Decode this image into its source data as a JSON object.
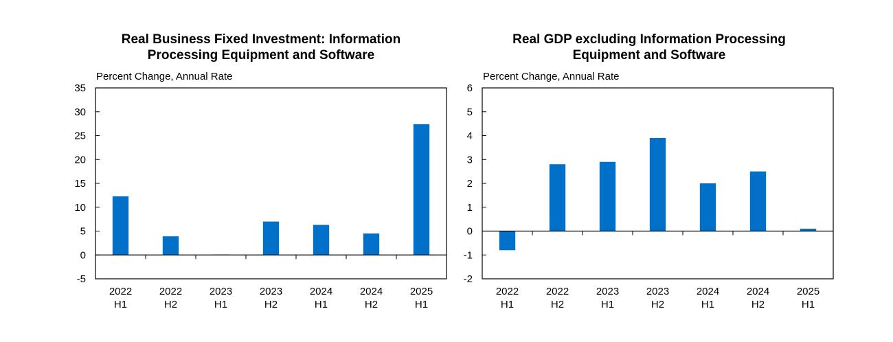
{
  "chart_data": [
    {
      "type": "bar",
      "title_lines": [
        "Real Business Fixed Investment: Information",
        "Processing Equipment and Software"
      ],
      "ylabel": "Percent Change, Annual Rate",
      "xlabel": "",
      "categories": [
        [
          "2022",
          "H1"
        ],
        [
          "2022",
          "H2"
        ],
        [
          "2023",
          "H1"
        ],
        [
          "2023",
          "H2"
        ],
        [
          "2024",
          "H1"
        ],
        [
          "2024",
          "H2"
        ],
        [
          "2025",
          "H1"
        ]
      ],
      "values": [
        12.3,
        3.9,
        0.1,
        7.0,
        6.3,
        4.5,
        27.4
      ],
      "ylim": [
        -5,
        35
      ],
      "yticks": [
        "35",
        "30",
        "25",
        "20",
        "15",
        "10",
        "5",
        "0",
        "-5"
      ],
      "ytick_values": [
        35,
        30,
        25,
        20,
        15,
        10,
        5,
        0,
        -5
      ],
      "grid": false,
      "bar_color": "#0070C8"
    },
    {
      "type": "bar",
      "title_lines": [
        "Real GDP excluding Information Processing",
        "Equipment and Software"
      ],
      "ylabel": "Percent Change, Annual Rate",
      "xlabel": "",
      "categories": [
        [
          "2022",
          "H1"
        ],
        [
          "2022",
          "H2"
        ],
        [
          "2023",
          "H1"
        ],
        [
          "2023",
          "H2"
        ],
        [
          "2024",
          "H1"
        ],
        [
          "2024",
          "H2"
        ],
        [
          "2025",
          "H1"
        ]
      ],
      "values": [
        -0.8,
        2.8,
        2.9,
        3.9,
        2.0,
        2.5,
        0.1
      ],
      "ylim": [
        -2,
        6
      ],
      "yticks": [
        "6",
        "5",
        "4",
        "3",
        "2",
        "1",
        "0",
        "-1",
        "-2"
      ],
      "ytick_values": [
        6,
        5,
        4,
        3,
        2,
        1,
        0,
        -1,
        -2
      ],
      "grid": false,
      "bar_color": "#0070C8"
    }
  ]
}
